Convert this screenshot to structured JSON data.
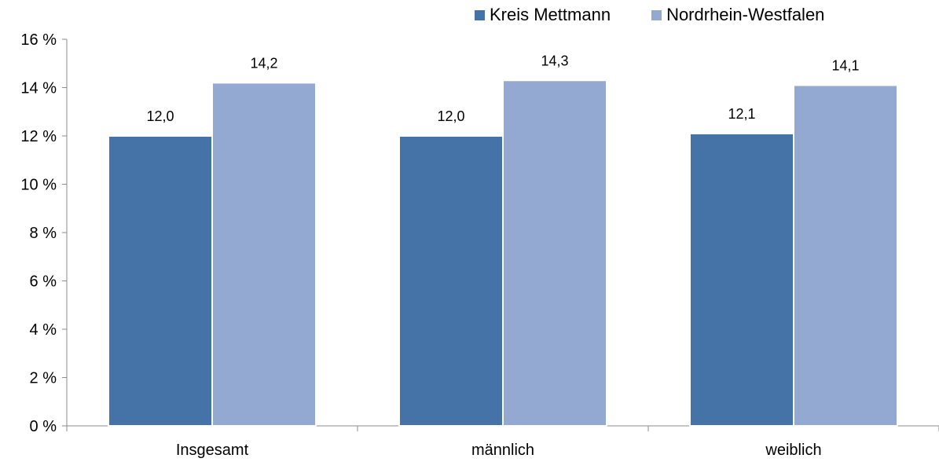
{
  "chart_data": {
    "type": "bar",
    "categories": [
      "Insgesamt",
      "männlich",
      "weiblich"
    ],
    "series": [
      {
        "name": "Kreis Mettmann",
        "values": [
          12.0,
          12.0,
          12.1
        ],
        "labels": [
          "12,0",
          "12,0",
          "12,1"
        ],
        "color": "#4673A7"
      },
      {
        "name": "Nordrhein-Westfalen",
        "values": [
          14.2,
          14.3,
          14.1
        ],
        "labels": [
          "14,2",
          "14,3",
          "14,1"
        ],
        "color": "#94A9D1"
      }
    ],
    "ylim": [
      0,
      16
    ],
    "yticks": [
      0,
      2,
      4,
      6,
      8,
      10,
      12,
      14,
      16
    ],
    "ytick_labels": [
      "0 %",
      "2 %",
      "4 %",
      "6 %",
      "8 %",
      "10 %",
      "12 %",
      "14 %",
      "16 %"
    ],
    "title": "",
    "xlabel": "",
    "ylabel": "",
    "grid": false,
    "legend_position": "top-right"
  }
}
